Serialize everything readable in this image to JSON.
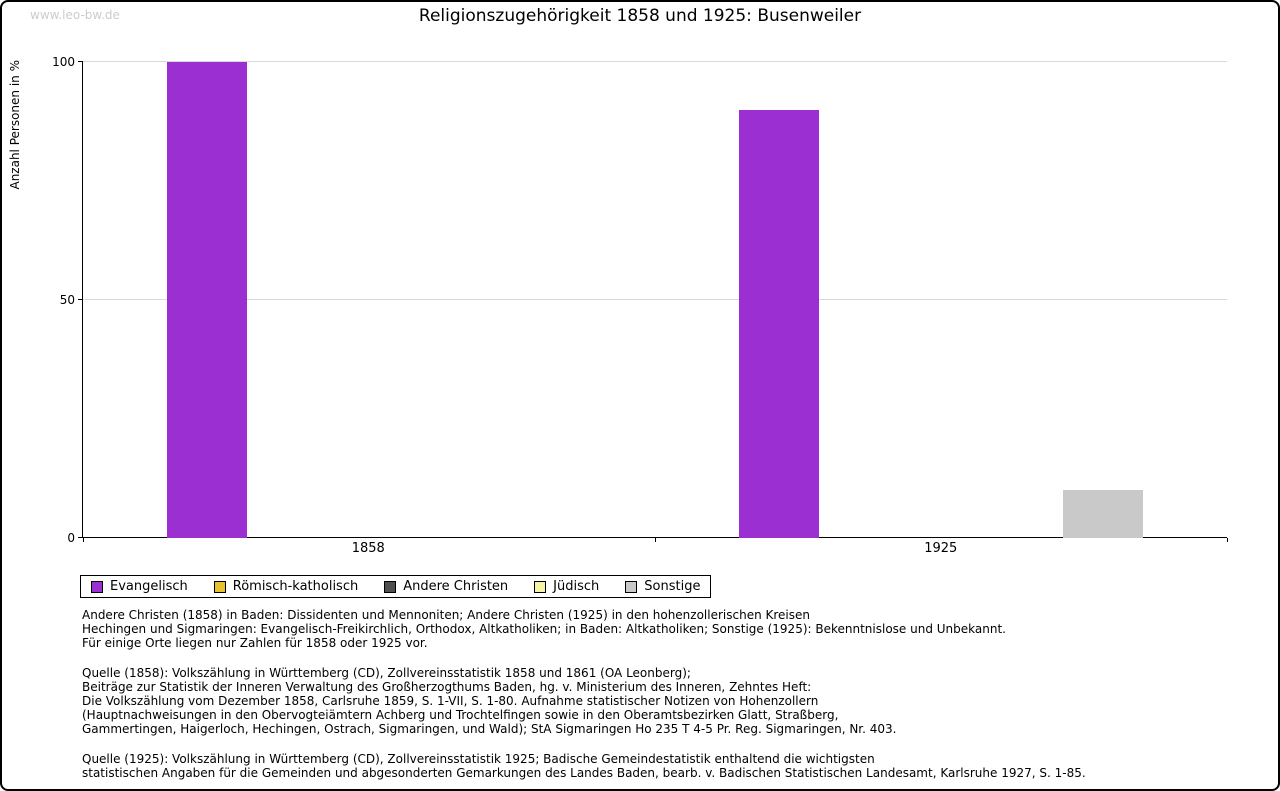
{
  "watermark": "www.leo-bw.de",
  "chart_data": {
    "type": "bar",
    "title": "Religionszugehörigkeit 1858 und 1925: Busenweiler",
    "ylabel": "Anzahl Personen in %",
    "xlabel": "",
    "ylim": [
      0,
      100
    ],
    "yticks": [
      0,
      50,
      100
    ],
    "grid": "horizontal",
    "legend_position": "bottom-left",
    "categories": [
      "1858",
      "1925"
    ],
    "series": [
      {
        "name": "Evangelisch",
        "color": "#9b2fd1",
        "values": [
          100,
          90
        ]
      },
      {
        "name": "Römisch-katholisch",
        "color": "#e8c22e",
        "values": [
          0,
          0
        ]
      },
      {
        "name": "Andere Christen",
        "color": "#4f4f4f",
        "values": [
          0,
          0
        ]
      },
      {
        "name": "Jüdisch",
        "color": "#f7f3a7",
        "values": [
          0,
          0
        ]
      },
      {
        "name": "Sonstige",
        "color": "#c9c9c9",
        "values": [
          0,
          10
        ]
      }
    ]
  },
  "notes": [
    "Andere Christen (1858) in Baden: Dissidenten und Mennoniten; Andere Christen (1925) in den hohenzollerischen Kreisen\nHechingen und Sigmaringen: Evangelisch-Freikirchlich, Orthodox, Altkatholiken; in Baden: Altkatholiken; Sonstige (1925): Bekenntnislose und Unbekannt.\nFür einige Orte liegen nur Zahlen für 1858 oder 1925 vor.",
    "Quelle (1858): Volkszählung in Württemberg (CD), Zollvereinsstatistik 1858 und 1861 (OA Leonberg);\nBeiträge zur Statistik der Inneren Verwaltung des Großherzogthums Baden, hg. v. Ministerium des Inneren, Zehntes Heft:\nDie Volkszählung vom Dezember 1858, Carlsruhe 1859, S. 1-VII, S. 1-80. Aufnahme statistischer Notizen von Hohenzollern\n(Hauptnachweisungen in den Obervogteiämtern Achberg und Trochtelfingen sowie in den Oberamtsbezirken Glatt, Straßberg,\nGammertingen, Haigerloch, Hechingen, Ostrach, Sigmaringen, und Wald); StA Sigmaringen Ho 235 T 4-5 Pr. Reg. Sigmaringen, Nr. 403.",
    "Quelle (1925): Volkszählung in Württemberg (CD), Zollvereinsstatistik 1925; Badische Gemeindestatistik enthaltend die wichtigsten\nstatistischen Angaben für die Gemeinden und abgesonderten Gemarkungen des Landes Baden, bearb. v. Badischen Statistischen Landesamt, Karlsruhe 1927, S. 1-85."
  ]
}
